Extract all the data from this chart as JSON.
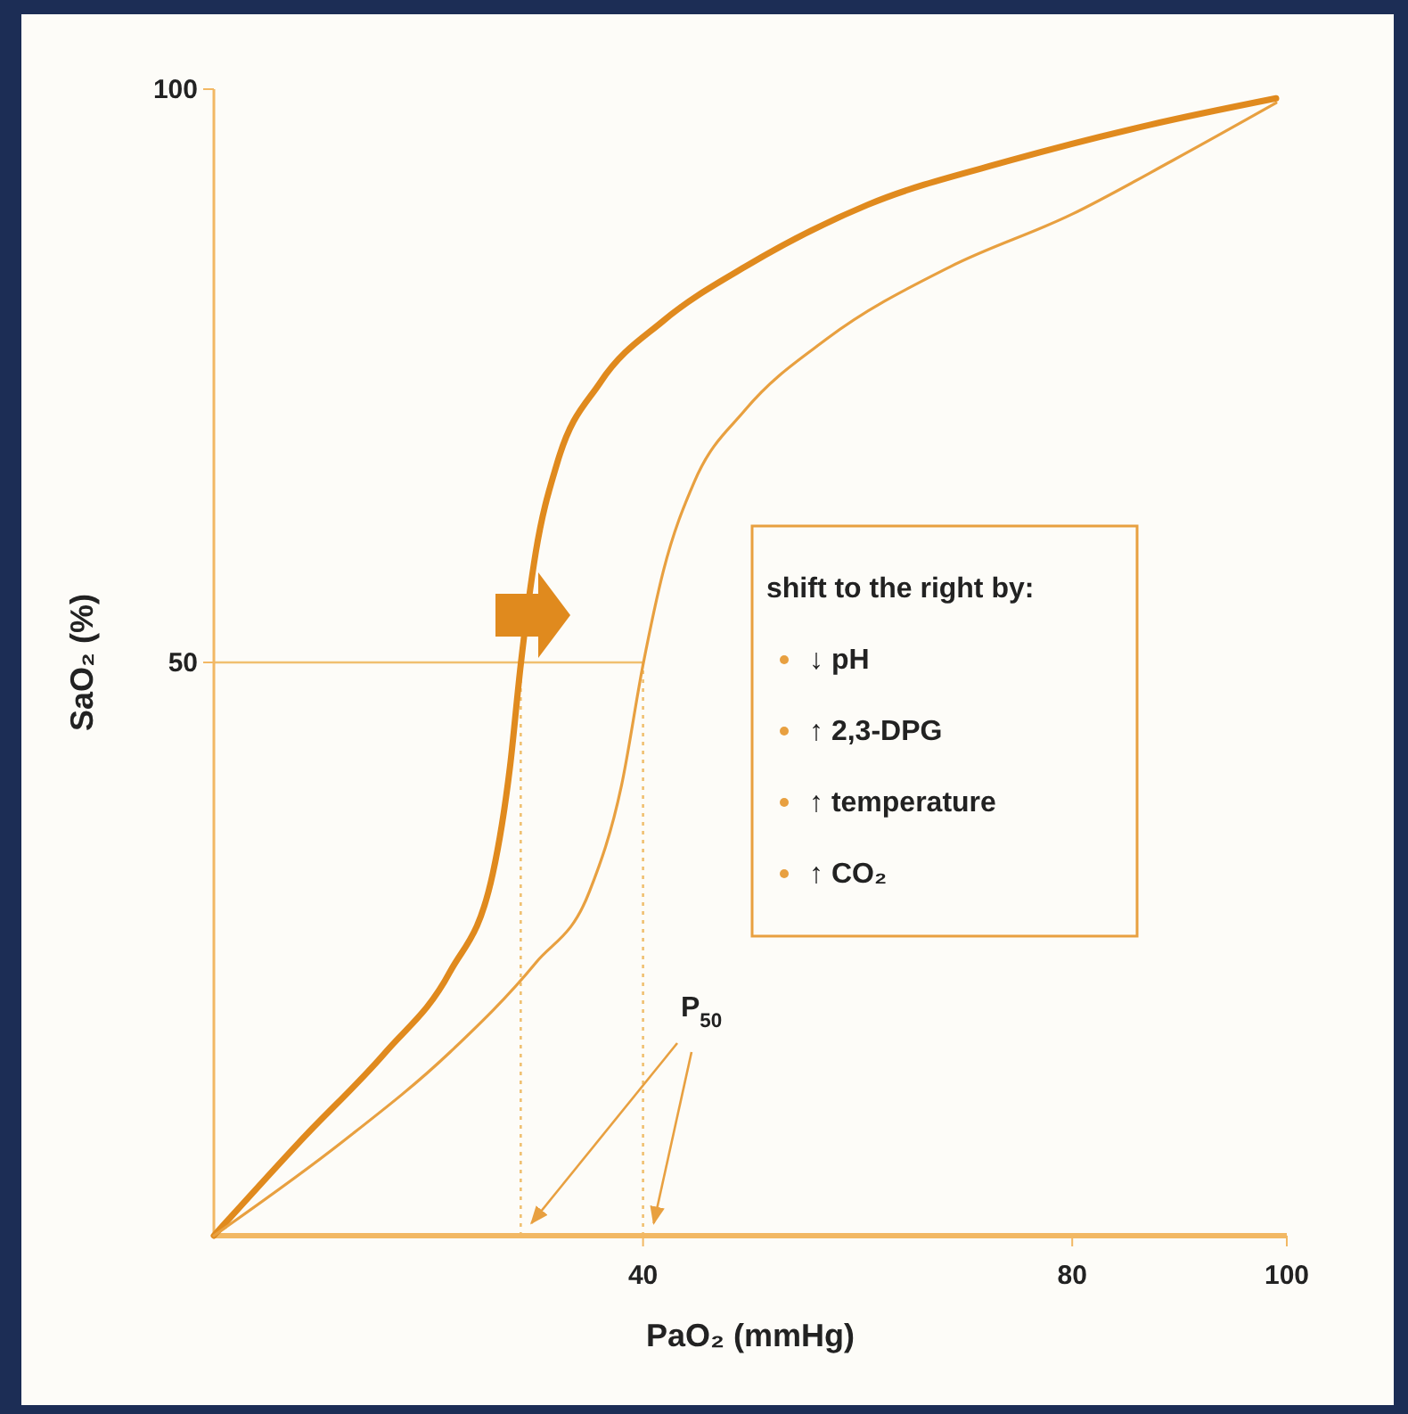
{
  "chart_data": {
    "type": "line",
    "xlabel": "PaO₂ (mmHg)",
    "ylabel": "SaO₂ (%)",
    "xlim": [
      0,
      100
    ],
    "xticks": [
      40,
      80,
      100
    ],
    "ylim": [
      0,
      100
    ],
    "yticks": [
      50,
      100
    ],
    "marker": "none",
    "series": [
      {
        "color": "#e08a1e",
        "x": [
          0,
          8,
          16,
          22,
          26,
          27.6,
          28.6,
          30,
          32,
          36,
          41.9,
          49.5,
          60.9,
          74.3,
          87.3,
          99
        ],
        "values": [
          0,
          8.2,
          16,
          23,
          31.6,
          40.9,
          49.8,
          59.6,
          67.4,
          74.4,
          79.8,
          84.5,
          89.9,
          93.8,
          96.9,
          99.2
        ]
      },
      {
        "color": "#e8a040",
        "x": [
          0,
          12,
          22,
          30,
          35,
          38,
          40,
          41.9,
          44.8,
          49.5,
          57.1,
          68.6,
          80,
          89.4,
          99
        ],
        "values": [
          0,
          8.2,
          16,
          23.8,
          30,
          39.3,
          49.8,
          58,
          65.8,
          72,
          78.2,
          84.5,
          89.1,
          93.8,
          98.8
        ]
      }
    ],
    "ref_lines": [
      {
        "axis": "y",
        "value": 50,
        "color": "#f0c070",
        "line_style": "solid"
      },
      {
        "axis": "x",
        "value": 28.6,
        "color": "#f0c070",
        "line_style": "dotted"
      },
      {
        "axis": "x",
        "value": 40,
        "color": "#f0c070",
        "line_style": "dotted"
      }
    ],
    "annotations": [
      "P$_{50}$",
      "shift to the right by:",
      "↓ pH",
      "↑ 2,3-DPG",
      "↑ temperature",
      "↑ CO₂"
    ]
  }
}
